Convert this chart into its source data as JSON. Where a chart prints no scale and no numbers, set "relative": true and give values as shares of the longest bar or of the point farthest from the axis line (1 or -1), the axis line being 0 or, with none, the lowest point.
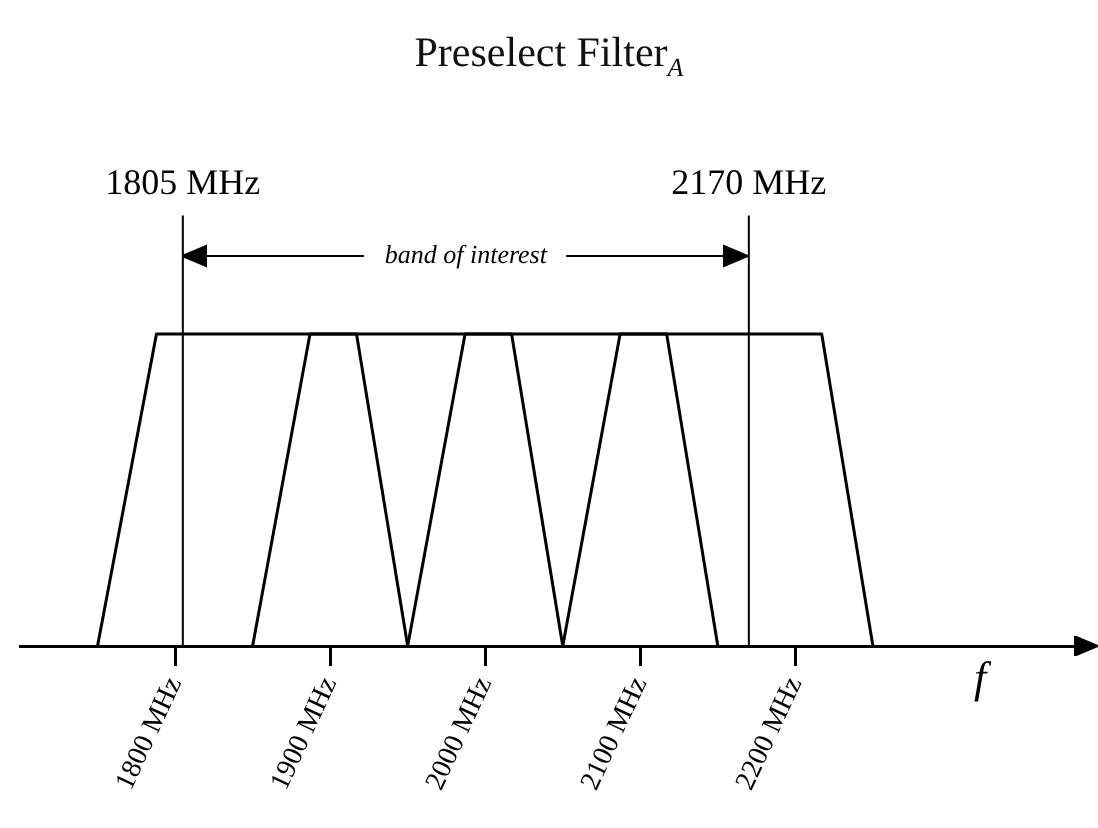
{
  "chart_data": {
    "type": "line",
    "title": "Preselect Filter$_{A}$",
    "xlabel": "f",
    "relative": true,
    "marker": "none",
    "line_style": "solid",
    "legend": false,
    "grid": false,
    "tick_labels": "x",
    "xlim": [
      1700,
      2390
    ],
    "xticks": [
      {
        "value": 1800,
        "label": "1800 MHz"
      },
      {
        "value": 1900,
        "label": "1900 MHz"
      },
      {
        "value": 2000,
        "label": "2000 MHz"
      },
      {
        "value": 2100,
        "label": "2100 MHz"
      },
      {
        "value": 2200,
        "label": "2200 MHz"
      }
    ],
    "series": [
      {
        "color": "#000000",
        "x": [
          1750,
          1788,
          1917,
          1950
        ],
        "values": [
          0,
          1,
          1,
          0
        ]
      },
      {
        "color": "#000000",
        "x": [
          1850,
          1887,
          2017,
          2050
        ],
        "values": [
          0,
          1,
          1,
          0
        ]
      },
      {
        "color": "#000000",
        "x": [
          1950,
          1987,
          2117,
          2150
        ],
        "values": [
          0,
          1,
          1,
          0
        ]
      },
      {
        "color": "#000000",
        "x": [
          2050,
          2087,
          2217,
          2250
        ],
        "values": [
          0,
          1,
          1,
          0
        ]
      }
    ],
    "ref_lines": [
      {
        "axis": "x",
        "value": 1805,
        "label": "1805 MHz",
        "color": "#000000"
      },
      {
        "axis": "x",
        "value": 2170,
        "label": "2170 MHz",
        "color": "#000000"
      }
    ],
    "annotations": [
      "band of interest"
    ]
  }
}
